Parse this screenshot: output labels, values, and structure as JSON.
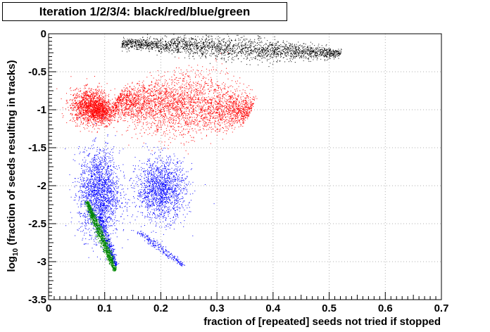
{
  "chart_data": {
    "type": "scatter",
    "title": "Iteration 1/2/3/4: black/red/blue/green",
    "xlabel": "fraction of [repeated] seeds not tried if stopped",
    "ylabel_prefix": "log",
    "ylabel_sub": "10",
    "ylabel_rest": " (fraction of seeds resulting in tracks)",
    "xlim": [
      0,
      0.7
    ],
    "ylim": [
      -3.5,
      0
    ],
    "xticks": [
      0,
      0.1,
      0.2,
      0.3,
      0.4,
      0.5,
      0.6,
      0.7
    ],
    "xtick_labels": [
      "0",
      "0.1",
      "0.2",
      "0.3",
      "0.4",
      "0.5",
      "0.6",
      "0.7"
    ],
    "yticks": [
      0,
      -0.5,
      -1,
      -1.5,
      -2,
      -2.5,
      -3,
      -3.5
    ],
    "ytick_labels": [
      "0",
      "-0.5",
      "-1",
      "-1.5",
      "-2",
      "-2.5",
      "-3",
      "-3.5"
    ],
    "grid": true,
    "series": [
      {
        "color": "#000000",
        "clusters": [
          {
            "x0": 0.13,
            "y0": -0.12,
            "x1": 0.52,
            "y1": -0.26,
            "width": 0.025,
            "count": 2400
          }
        ]
      },
      {
        "color": "#ff0000",
        "clusters": [
          {
            "cx": 0.075,
            "cy": -0.95,
            "sx": 0.018,
            "sy": 0.11,
            "count": 1500
          },
          {
            "cx": 0.095,
            "cy": -1.05,
            "sx": 0.012,
            "sy": 0.07,
            "count": 500
          },
          {
            "x0": 0.12,
            "y0": -0.87,
            "x1": 0.36,
            "y1": -1.02,
            "width": 0.08,
            "count": 3500
          }
        ]
      },
      {
        "color": "#0000ff",
        "clusters": [
          {
            "cx": 0.09,
            "cy": -2.1,
            "sx": 0.018,
            "sy": 0.28,
            "count": 2000
          },
          {
            "cx": 0.2,
            "cy": -2.05,
            "sx": 0.022,
            "sy": 0.2,
            "count": 1600
          },
          {
            "x0": 0.09,
            "y0": -2.4,
            "x1": 0.12,
            "y1": -3.05,
            "width": 0.012,
            "count": 400
          },
          {
            "x0": 0.16,
            "y0": -2.6,
            "x1": 0.24,
            "y1": -3.05,
            "width": 0.015,
            "count": 250
          }
        ]
      },
      {
        "color": "#008800",
        "clusters": [
          {
            "x0": 0.068,
            "y0": -2.2,
            "x1": 0.118,
            "y1": -3.12,
            "width": 0.012,
            "count": 1300
          }
        ]
      }
    ]
  }
}
